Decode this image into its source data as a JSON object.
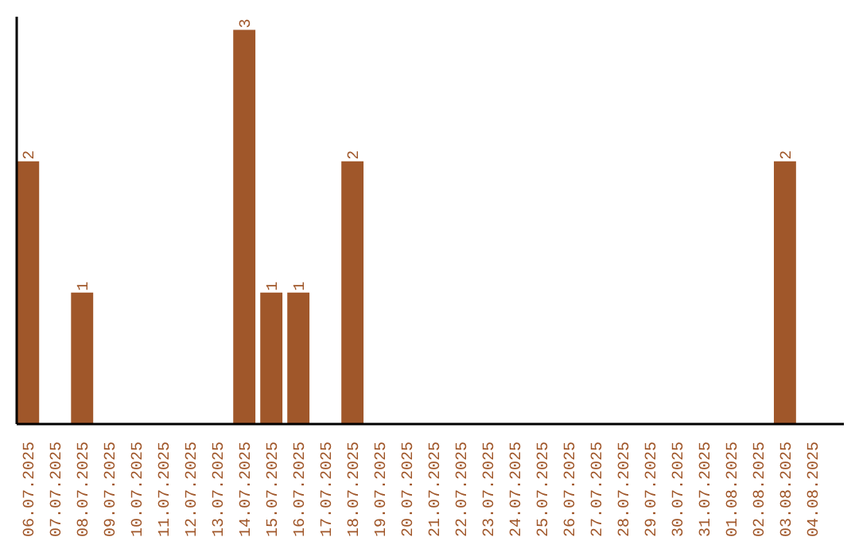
{
  "chart_data": {
    "type": "bar",
    "categories": [
      "06.07.2025",
      "07.07.2025",
      "08.07.2025",
      "09.07.2025",
      "10.07.2025",
      "11.07.2025",
      "12.07.2025",
      "13.07.2025",
      "14.07.2025",
      "15.07.2025",
      "16.07.2025",
      "17.07.2025",
      "18.07.2025",
      "19.07.2025",
      "20.07.2025",
      "21.07.2025",
      "22.07.2025",
      "23.07.2025",
      "24.07.2025",
      "25.07.2025",
      "26.07.2025",
      "27.07.2025",
      "28.07.2025",
      "29.07.2025",
      "30.07.2025",
      "31.07.2025",
      "01.08.2025",
      "02.08.2025",
      "03.08.2025",
      "04.08.2025"
    ],
    "values": [
      2,
      0,
      1,
      0,
      0,
      0,
      0,
      0,
      3,
      1,
      1,
      0,
      2,
      0,
      0,
      0,
      0,
      0,
      0,
      0,
      0,
      0,
      0,
      0,
      0,
      0,
      0,
      0,
      2,
      0
    ],
    "value_labels": [
      "2",
      null,
      "1",
      null,
      null,
      null,
      null,
      null,
      "3",
      "1",
      "1",
      null,
      "2",
      null,
      null,
      null,
      null,
      null,
      null,
      null,
      null,
      null,
      null,
      null,
      null,
      null,
      null,
      null,
      "2",
      null
    ],
    "color": "#a0572a",
    "ylim": [
      0,
      3.1
    ],
    "grid": false
  }
}
